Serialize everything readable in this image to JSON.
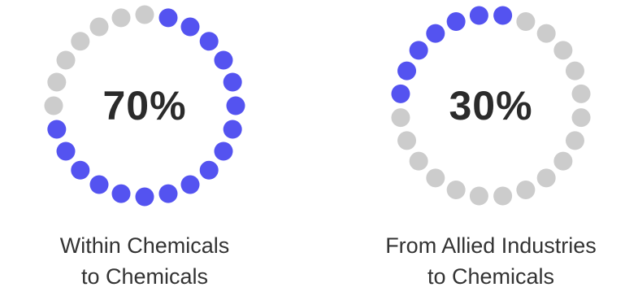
{
  "chart_data": [
    {
      "type": "radial-dot-gauge",
      "value": 70,
      "value_label": "70%",
      "total_dots": 24,
      "direction": "counterclockwise",
      "caption_lines": [
        "Within Chemicals",
        "to Chemicals"
      ]
    },
    {
      "type": "radial-dot-gauge",
      "value": 30,
      "value_label": "30%",
      "total_dots": 24,
      "direction": "counterclockwise",
      "caption_lines": [
        "From Allied Industries",
        "to Chemicals"
      ]
    }
  ],
  "colors": {
    "filled": "#5453f0",
    "empty": "#cccccc",
    "text": "#2b2b2b"
  }
}
